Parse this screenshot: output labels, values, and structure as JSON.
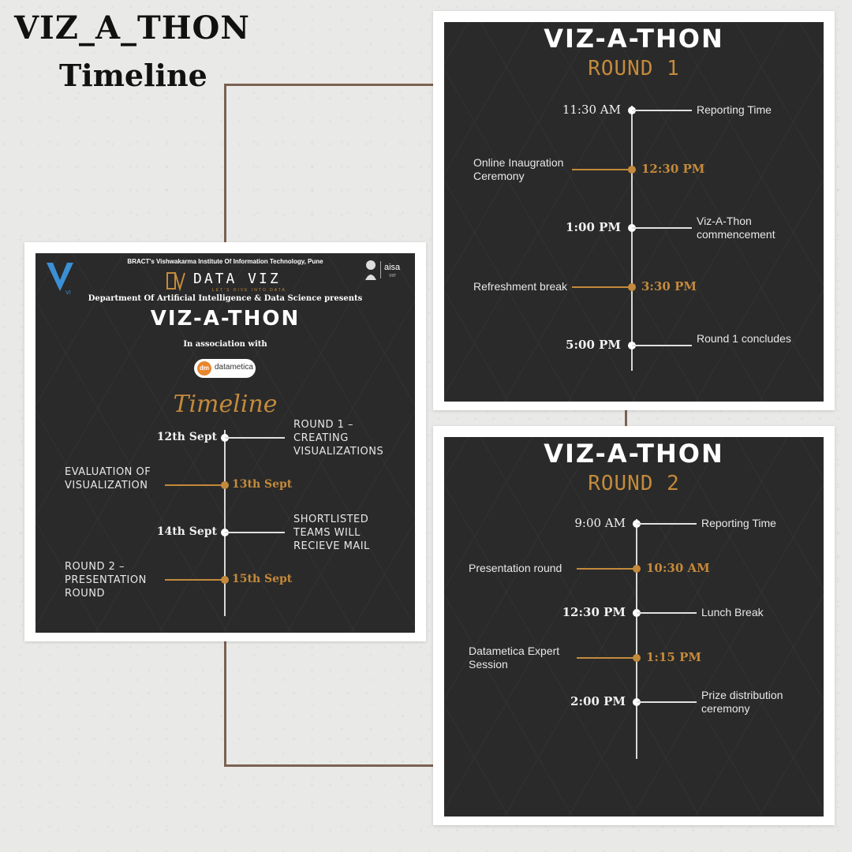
{
  "page": {
    "title": "VIZ_A_THON",
    "subtitle": "Timeline",
    "colors": {
      "background": "#e9e9e7",
      "panel": "#2a2a2a",
      "accent": "#c48a3b",
      "connector": "#7a6252"
    }
  },
  "main_poster": {
    "institute": "BRACT's Vishwakarma Institute Of Information Technology, Pune",
    "logo_left_icon": "vit-logo-icon",
    "brand_name": "DATA VIZ",
    "brand_tagline": "LET'S DIVE INTO DATA",
    "right_logo_name": "aisa",
    "right_logo_sub": "VIIT",
    "department": "Department Of Artificial Intelligence & Data Science presents",
    "event_title": "VIZ-A-THON",
    "association": "In association with",
    "partner_name": "datametica",
    "partner_mark": "dm",
    "timeline_title": "Timeline",
    "items": [
      {
        "date": "12th Sept",
        "label": "ROUND 1 – CREATING VISUALIZATIONS",
        "side": "right",
        "accent": false
      },
      {
        "date": "13th Sept",
        "label": "EVALUATION OF VISUALIZATION",
        "side": "left",
        "accent": true
      },
      {
        "date": "14th Sept",
        "label": "SHORTLISTED TEAMS WILL RECIEVE MAIL",
        "side": "right",
        "accent": false
      },
      {
        "date": "15th Sept",
        "label": "ROUND 2 – PRESENTATION ROUND",
        "side": "left",
        "accent": true
      }
    ]
  },
  "round1": {
    "title": "VIZ-A-THON",
    "round": "ROUND 1",
    "items": [
      {
        "time": "11:30 AM",
        "label": "Reporting Time",
        "accent": false,
        "bold": false
      },
      {
        "time": "12:30 PM",
        "label": "Online Inaugration Ceremony",
        "accent": true,
        "bold": false
      },
      {
        "time": "1:00 PM",
        "label": "Viz-A-Thon commencement",
        "accent": false,
        "bold": true
      },
      {
        "time": "3:30 PM",
        "label": "Refreshment break",
        "accent": true,
        "bold": false
      },
      {
        "time": "5:00 PM",
        "label": "Round 1 concludes",
        "accent": false,
        "bold": true
      }
    ]
  },
  "round2": {
    "title": "VIZ-A-THON",
    "round": "ROUND 2",
    "items": [
      {
        "time": "9:00 AM",
        "label": "Reporting Time",
        "accent": false,
        "bold": false
      },
      {
        "time": "10:30 AM",
        "label": "Presentation round",
        "accent": true,
        "bold": false
      },
      {
        "time": "12:30 PM",
        "label": "Lunch Break",
        "accent": false,
        "bold": true
      },
      {
        "time": "1:15 PM",
        "label": "Datametica Expert Session",
        "accent": true,
        "bold": false
      },
      {
        "time": "2:00 PM",
        "label": "Prize distribution ceremony",
        "accent": false,
        "bold": true
      }
    ]
  }
}
